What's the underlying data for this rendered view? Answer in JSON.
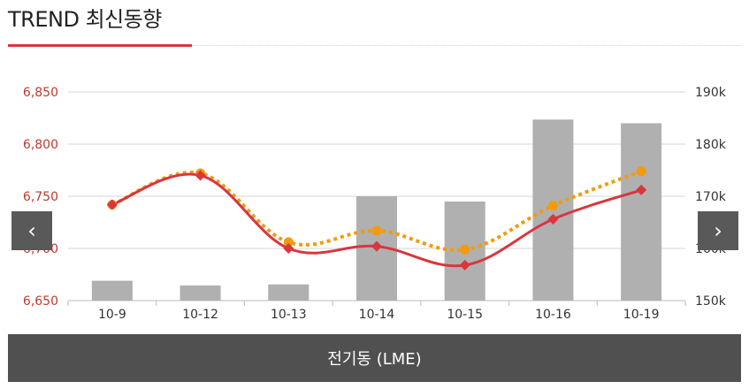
{
  "header": {
    "title": "TREND 최신동향"
  },
  "nav": {
    "prev": "‹",
    "next": "›"
  },
  "footer": {
    "label": "전기동 (LME)"
  },
  "colors": {
    "bar": "#b0b0b0",
    "line_red": "#d9363e",
    "line_orange": "#f29b0c",
    "left_axis": "#c0392b",
    "grid": "#d6d6d6"
  },
  "chart_data": {
    "type": "bar",
    "categories": [
      "10-9",
      "10-12",
      "10-13",
      "10-14",
      "10-15",
      "10-16",
      "10-19"
    ],
    "y_left": {
      "ticks": [
        "6,650",
        "6,700",
        "6,750",
        "6,800",
        "6,850"
      ],
      "range": [
        6650,
        6850
      ]
    },
    "y_right": {
      "ticks": [
        "150k",
        "160k",
        "170k",
        "180k",
        "190k"
      ],
      "range": [
        150,
        190
      ]
    },
    "series": [
      {
        "type": "bar",
        "axis": "right",
        "values": [
          153.8,
          152.9,
          153.1,
          170.0,
          169.0,
          184.7,
          184.0
        ]
      },
      {
        "type": "line",
        "axis": "left",
        "marker": "diamond",
        "values": [
          6742,
          6770,
          6700,
          6702,
          6684,
          6728,
          6756
        ]
      },
      {
        "type": "line",
        "axis": "left",
        "marker": "circle",
        "dashed": true,
        "values": [
          6742,
          6772,
          6706,
          6717,
          6699,
          6741,
          6774
        ]
      }
    ]
  }
}
